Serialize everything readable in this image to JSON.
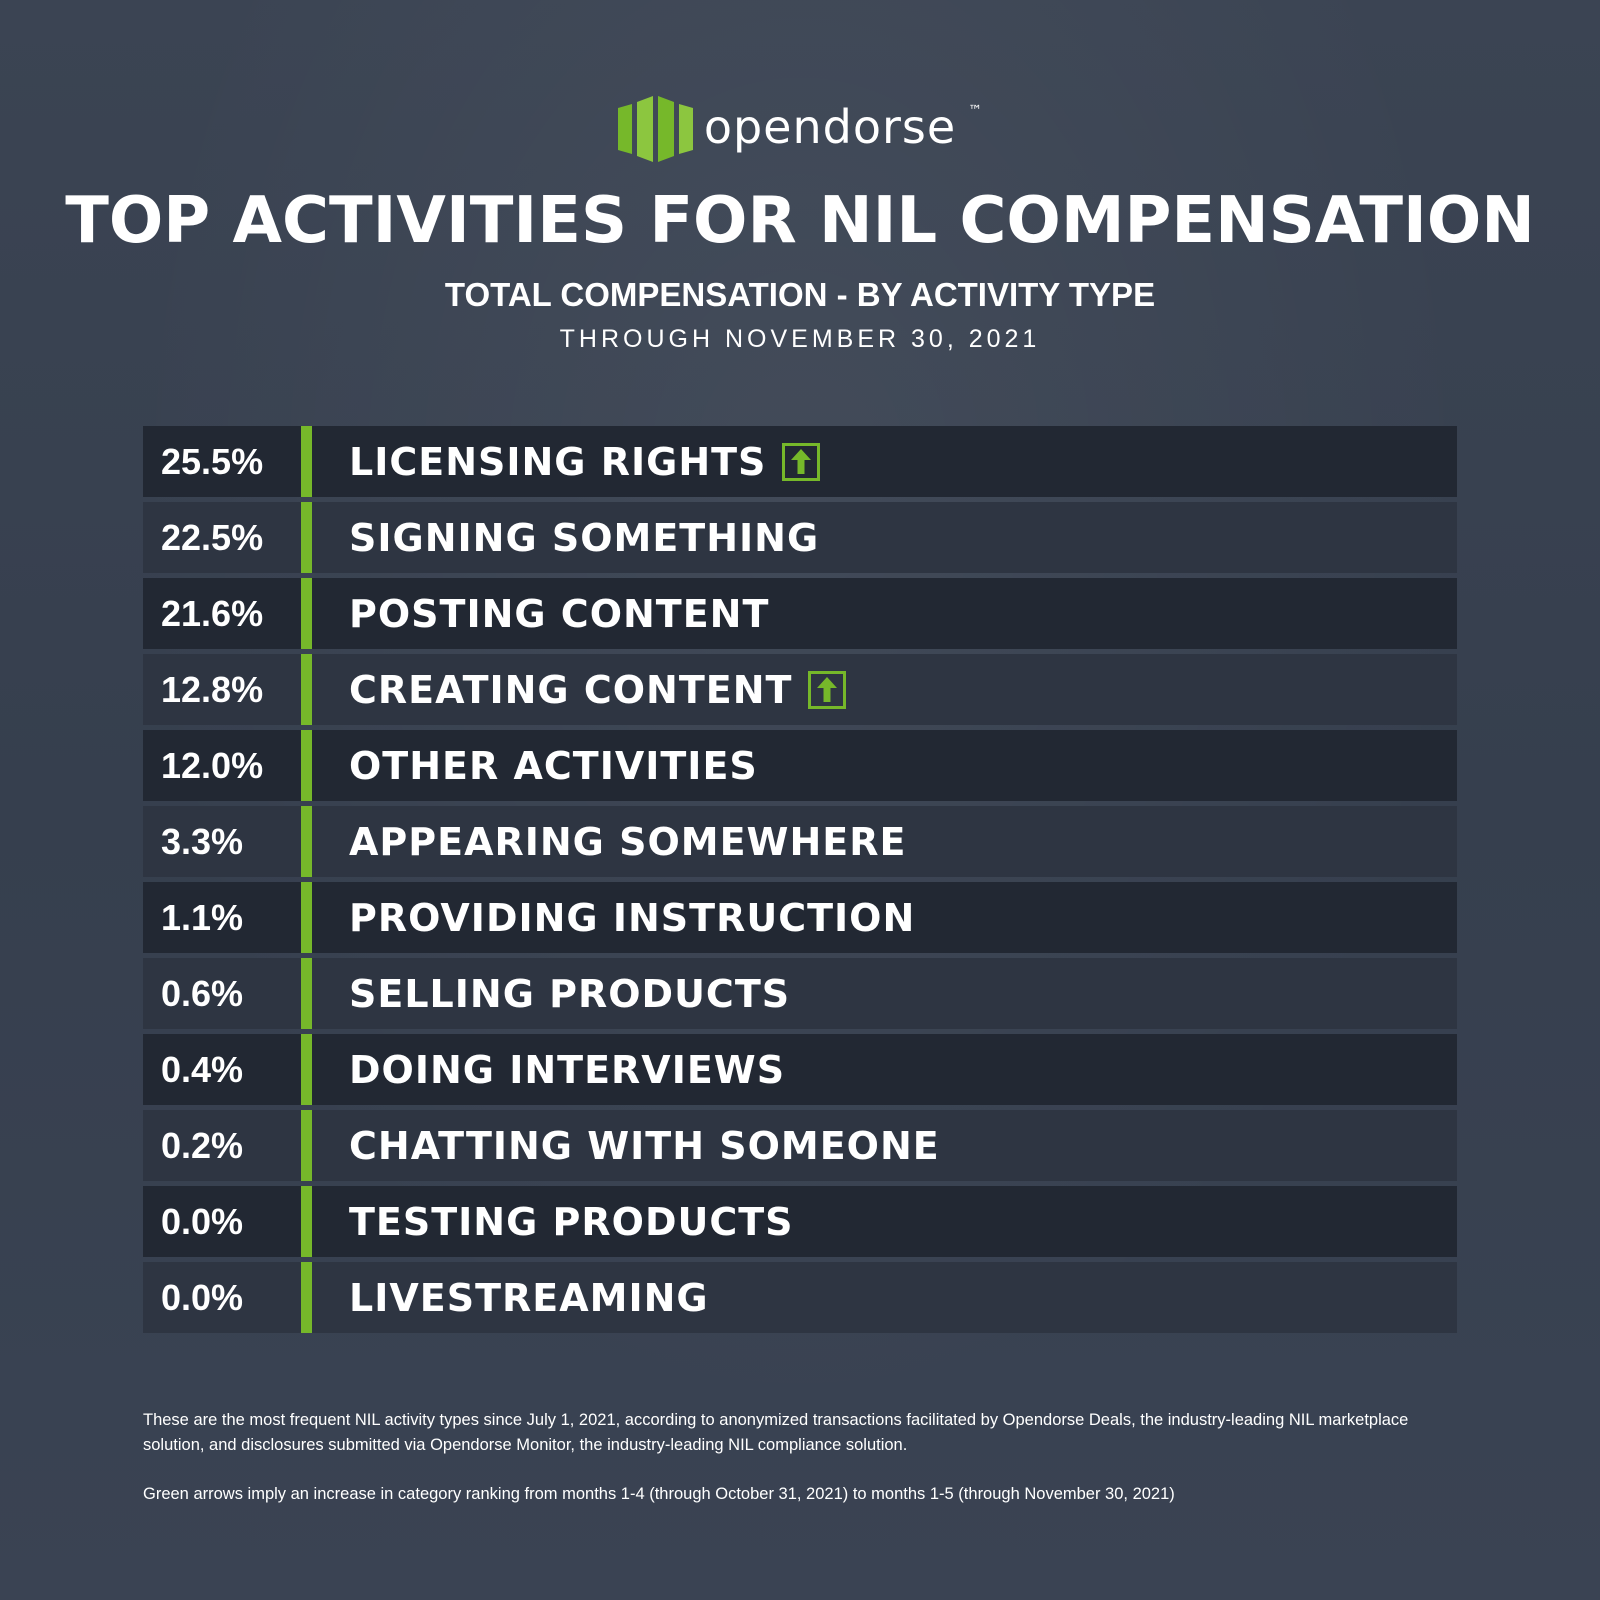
{
  "brand": {
    "name": "opendorse",
    "trademark": "™",
    "accent_color": "#76b82a"
  },
  "header": {
    "title": "TOP ACTIVITIES FOR NIL COMPENSATION",
    "subtitle": "TOTAL COMPENSATION - BY ACTIVITY TYPE",
    "date_line": "THROUGH NOVEMBER 30, 2021"
  },
  "chart_data": {
    "type": "table",
    "title": "TOP ACTIVITIES FOR NIL COMPENSATION",
    "subtitle": "TOTAL COMPENSATION - BY ACTIVITY TYPE",
    "columns": [
      "percent",
      "activity"
    ],
    "rows": [
      {
        "percent": "25.5%",
        "value": 25.5,
        "activity": "LICENSING RIGHTS",
        "up_arrow": true
      },
      {
        "percent": "22.5%",
        "value": 22.5,
        "activity": "SIGNING SOMETHING",
        "up_arrow": false
      },
      {
        "percent": "21.6%",
        "value": 21.6,
        "activity": "POSTING CONTENT",
        "up_arrow": false
      },
      {
        "percent": "12.8%",
        "value": 12.8,
        "activity": "CREATING CONTENT",
        "up_arrow": true
      },
      {
        "percent": "12.0%",
        "value": 12.0,
        "activity": "OTHER ACTIVITIES",
        "up_arrow": false
      },
      {
        "percent": "3.3%",
        "value": 3.3,
        "activity": "APPEARING SOMEWHERE",
        "up_arrow": false
      },
      {
        "percent": "1.1%",
        "value": 1.1,
        "activity": "PROVIDING INSTRUCTION",
        "up_arrow": false
      },
      {
        "percent": "0.6%",
        "value": 0.6,
        "activity": "SELLING PRODUCTS",
        "up_arrow": false
      },
      {
        "percent": "0.4%",
        "value": 0.4,
        "activity": "DOING INTERVIEWS",
        "up_arrow": false
      },
      {
        "percent": "0.2%",
        "value": 0.2,
        "activity": "CHATTING WITH SOMEONE",
        "up_arrow": false
      },
      {
        "percent": "0.0%",
        "value": 0.0,
        "activity": "TESTING PRODUCTS",
        "up_arrow": false
      },
      {
        "percent": "0.0%",
        "value": 0.0,
        "activity": "LIVESTREAMING",
        "up_arrow": false
      }
    ]
  },
  "footnotes": {
    "note1": "These are the most frequent NIL activity types since July 1, 2021, according to anonymized transactions facilitated by Opendorse Deals, the industry-leading NIL marketplace solution, and disclosures submitted via Opendorse Monitor, the industry-leading NIL compliance solution.",
    "note2": "Green arrows imply an increase in category ranking from months 1-4 (through October 31, 2021) to months 1-5 (through November 30, 2021)"
  }
}
